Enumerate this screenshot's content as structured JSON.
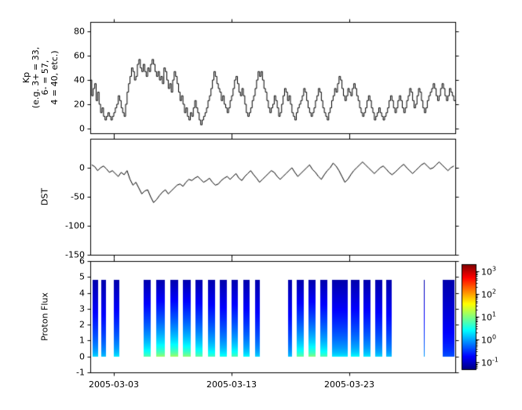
{
  "figure": {
    "background": "#ffffff"
  },
  "panels": {
    "kp": {
      "ylabel_lines": [
        "Kp",
        "(e.g. 3+ = 33,",
        "6- = 57,",
        "4 = 40, etc.)"
      ],
      "yticks": [
        0,
        20,
        40,
        60,
        80
      ],
      "ylim": [
        -4,
        88
      ]
    },
    "dst": {
      "ylabel": "DST",
      "yticks": [
        -150,
        -100,
        -50,
        0
      ],
      "ylim": [
        -150,
        50
      ]
    },
    "proton": {
      "ylabel": "Proton Flux",
      "yticks": [
        -1,
        0,
        1,
        2,
        3,
        4,
        5,
        6
      ],
      "ylim": [
        -1,
        6
      ]
    }
  },
  "xaxis": {
    "start_date": "2005-03-01",
    "span_days": 31,
    "tick_days": [
      2,
      12,
      22
    ],
    "tick_labels": [
      "2005-03-03",
      "2005-03-13",
      "2005-03-23"
    ]
  },
  "colorbar": {
    "colormap": "jet",
    "tick_exponents": [
      3,
      2,
      1,
      0,
      -1
    ],
    "log_range": [
      -1.3,
      3.3
    ]
  },
  "chart_data": [
    {
      "type": "line",
      "name": "Kp index (Kp*10 scale)",
      "x_start": "2005-03-01T00:00",
      "cadence_hours": 3,
      "ylim": [
        -4,
        88
      ],
      "yticks": [
        0,
        20,
        40,
        60,
        80
      ],
      "values": [
        40,
        27,
        33,
        37,
        23,
        30,
        20,
        13,
        17,
        10,
        7,
        10,
        13,
        10,
        7,
        10,
        13,
        17,
        20,
        27,
        23,
        17,
        13,
        10,
        20,
        30,
        37,
        43,
        50,
        47,
        40,
        43,
        53,
        57,
        50,
        47,
        53,
        47,
        43,
        50,
        47,
        53,
        57,
        53,
        47,
        43,
        47,
        40,
        43,
        37,
        50,
        47,
        40,
        33,
        37,
        30,
        40,
        47,
        43,
        37,
        30,
        23,
        27,
        20,
        13,
        17,
        10,
        7,
        13,
        10,
        17,
        23,
        17,
        13,
        7,
        3,
        7,
        10,
        13,
        17,
        23,
        27,
        33,
        40,
        47,
        43,
        37,
        33,
        30,
        23,
        27,
        20,
        17,
        13,
        17,
        23,
        27,
        33,
        40,
        43,
        37,
        30,
        27,
        33,
        27,
        20,
        13,
        10,
        13,
        17,
        23,
        27,
        33,
        40,
        47,
        43,
        47,
        40,
        33,
        30,
        23,
        17,
        13,
        17,
        20,
        27,
        23,
        17,
        10,
        13,
        20,
        27,
        33,
        30,
        23,
        27,
        20,
        13,
        10,
        7,
        13,
        17,
        20,
        23,
        27,
        33,
        30,
        23,
        17,
        13,
        10,
        13,
        17,
        23,
        27,
        33,
        30,
        23,
        17,
        13,
        10,
        7,
        13,
        17,
        23,
        27,
        33,
        30,
        37,
        43,
        40,
        33,
        27,
        23,
        27,
        33,
        30,
        27,
        33,
        37,
        33,
        27,
        23,
        17,
        13,
        10,
        13,
        17,
        23,
        27,
        23,
        17,
        13,
        7,
        10,
        13,
        17,
        13,
        10,
        7,
        10,
        13,
        17,
        23,
        27,
        23,
        17,
        13,
        17,
        23,
        27,
        23,
        17,
        13,
        17,
        23,
        27,
        33,
        30,
        23,
        17,
        20,
        27,
        33,
        30,
        23,
        17,
        13,
        17,
        23,
        27,
        30,
        33,
        37,
        33,
        27,
        23,
        27,
        33,
        37,
        33,
        27,
        23,
        27,
        33,
        30,
        27,
        23
      ]
    },
    {
      "type": "line",
      "name": "DST (nT)",
      "x_start": "2005-03-01T00:00",
      "cadence_hours": 6,
      "ylim": [
        -150,
        50
      ],
      "yticks": [
        -150,
        -100,
        -50,
        0
      ],
      "values": [
        5,
        2,
        -5,
        0,
        3,
        -2,
        -8,
        -5,
        -10,
        -15,
        -8,
        -12,
        -5,
        -20,
        -30,
        -25,
        -35,
        -45,
        -40,
        -38,
        -50,
        -60,
        -55,
        -48,
        -42,
        -38,
        -45,
        -40,
        -35,
        -30,
        -28,
        -32,
        -25,
        -20,
        -22,
        -18,
        -15,
        -20,
        -25,
        -22,
        -18,
        -25,
        -30,
        -28,
        -22,
        -18,
        -15,
        -20,
        -15,
        -10,
        -18,
        -22,
        -15,
        -10,
        -5,
        -12,
        -18,
        -25,
        -20,
        -15,
        -10,
        -5,
        -8,
        -15,
        -20,
        -15,
        -10,
        -5,
        0,
        -8,
        -15,
        -10,
        -5,
        0,
        5,
        -3,
        -8,
        -15,
        -20,
        -12,
        -5,
        0,
        8,
        3,
        -5,
        -15,
        -25,
        -20,
        -12,
        -5,
        0,
        5,
        10,
        5,
        0,
        -5,
        -10,
        -5,
        0,
        3,
        -2,
        -8,
        -12,
        -8,
        -3,
        2,
        6,
        0,
        -5,
        -10,
        -5,
        0,
        5,
        8,
        3,
        -2,
        0,
        5,
        10,
        5,
        0,
        -5,
        0,
        3
      ]
    },
    {
      "type": "heatmap",
      "name": "Proton Flux",
      "colormap": "jet",
      "ylim": [
        -1,
        6
      ],
      "y_extent": [
        0,
        4.85
      ],
      "stripe_top_log10_flux": -1.1,
      "colorbar_ticks_log10": [
        3,
        2,
        1,
        0,
        -1
      ],
      "stripes": [
        {
          "day": 0.2,
          "width_days": 0.45,
          "bottom_log10_flux": 0.35
        },
        {
          "day": 0.95,
          "width_days": 0.4,
          "bottom_log10_flux": 0.25
        },
        {
          "day": 2.0,
          "width_days": 0.45,
          "bottom_log10_flux": 0.45
        },
        {
          "day": 4.5,
          "width_days": 0.6,
          "bottom_log10_flux": 0.95
        },
        {
          "day": 5.6,
          "width_days": 0.7,
          "bottom_log10_flux": 1.25
        },
        {
          "day": 6.8,
          "width_days": 0.65,
          "bottom_log10_flux": 1.3
        },
        {
          "day": 7.85,
          "width_days": 0.65,
          "bottom_log10_flux": 1.2
        },
        {
          "day": 8.95,
          "width_days": 0.6,
          "bottom_log10_flux": 1.0
        },
        {
          "day": 10.0,
          "width_days": 0.6,
          "bottom_log10_flux": 0.85
        },
        {
          "day": 11.0,
          "width_days": 0.6,
          "bottom_log10_flux": 0.65
        },
        {
          "day": 12.0,
          "width_days": 0.55,
          "bottom_log10_flux": 0.9
        },
        {
          "day": 13.0,
          "width_days": 0.55,
          "bottom_log10_flux": 0.55
        },
        {
          "day": 14.0,
          "width_days": 0.42,
          "bottom_log10_flux": 0.35
        },
        {
          "day": 16.8,
          "width_days": 0.35,
          "bottom_log10_flux": 0.25
        },
        {
          "day": 17.5,
          "width_days": 0.6,
          "bottom_log10_flux": 1.0
        },
        {
          "day": 18.5,
          "width_days": 0.6,
          "bottom_log10_flux": 1.15
        },
        {
          "day": 19.5,
          "width_days": 0.6,
          "bottom_log10_flux": 0.9
        },
        {
          "day": 20.5,
          "width_days": 1.35,
          "bottom_log10_flux": 0.45
        },
        {
          "day": 22.1,
          "width_days": 0.7,
          "bottom_log10_flux": 0.55
        },
        {
          "day": 23.2,
          "width_days": 0.6,
          "bottom_log10_flux": 0.45
        },
        {
          "day": 24.2,
          "width_days": 0.6,
          "bottom_log10_flux": 0.35
        },
        {
          "day": 25.1,
          "width_days": 0.45,
          "bottom_log10_flux": 0.25
        },
        {
          "day": 28.35,
          "width_days": 0.07,
          "bottom_log10_flux": 0.1
        },
        {
          "day": 29.9,
          "width_days": 1.0,
          "bottom_log10_flux": -0.3
        }
      ]
    }
  ]
}
